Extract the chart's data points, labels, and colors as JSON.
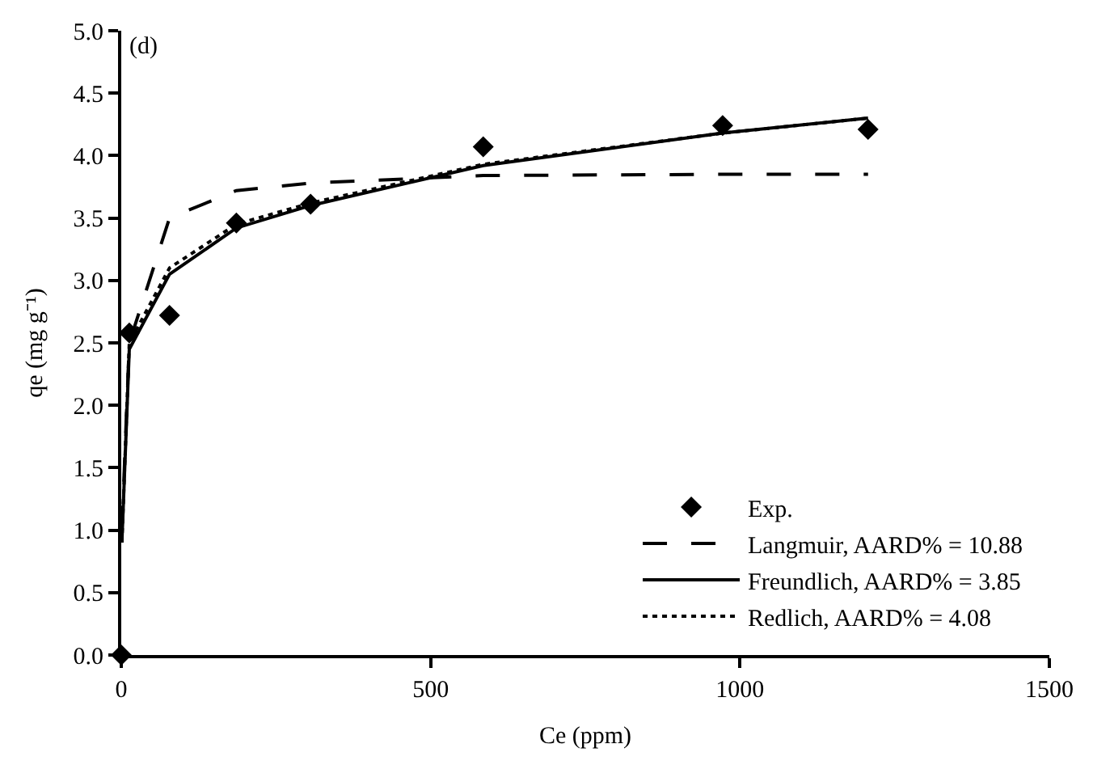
{
  "chart_data": {
    "type": "line",
    "xlabel": "Ce (ppm)",
    "ylabel": "qe (mg g⁻¹)",
    "annotations": [
      "(d)"
    ],
    "xlim": [
      0,
      1500
    ],
    "xticks": [
      0,
      500,
      1000,
      1500
    ],
    "ylim": [
      0,
      5
    ],
    "yticks": [
      {
        "value": 0,
        "label": "0.0"
      },
      0.5,
      {
        "value": 1,
        "label": "1.0"
      },
      1.5,
      {
        "value": 2,
        "label": "2.0"
      },
      2.5,
      {
        "value": 3,
        "label": "3.0"
      },
      3.5,
      {
        "value": 4,
        "label": "4.0"
      },
      4.5,
      {
        "value": 5,
        "label": "5.0"
      }
    ],
    "legend": "bottom right",
    "series": [
      {
        "name": "Exp.",
        "type": "scatter",
        "marker": "diamond",
        "color": "#000000",
        "x": [
          0,
          13,
          78,
          186,
          306,
          585,
          972,
          1207
        ],
        "values": [
          0,
          2.58,
          2.72,
          3.46,
          3.61,
          4.07,
          4.24,
          4.21
        ]
      },
      {
        "name": "Langmuir, AARD% = 10.88",
        "line_style": "dashed",
        "color": "#000000",
        "x": [
          1,
          13,
          78,
          186,
          306,
          585,
          972,
          1207
        ],
        "values": [
          1.0,
          2.5,
          3.5,
          3.72,
          3.78,
          3.84,
          3.85,
          3.85
        ]
      },
      {
        "name": "Freundlich, AARD% = 3.85",
        "line_style": "solid",
        "color": "#000000",
        "x": [
          1,
          13,
          78,
          186,
          306,
          585,
          972,
          1207
        ],
        "values": [
          0.9,
          2.45,
          3.05,
          3.42,
          3.6,
          3.92,
          4.18,
          4.3
        ]
      },
      {
        "name": "Redlich, AARD% = 4.08",
        "line_style": "dotted",
        "color": "#000000",
        "x": [
          1,
          13,
          78,
          186,
          306,
          585,
          972,
          1207
        ],
        "values": [
          0.9,
          2.5,
          3.1,
          3.45,
          3.62,
          3.93,
          4.18,
          4.3
        ]
      }
    ]
  }
}
